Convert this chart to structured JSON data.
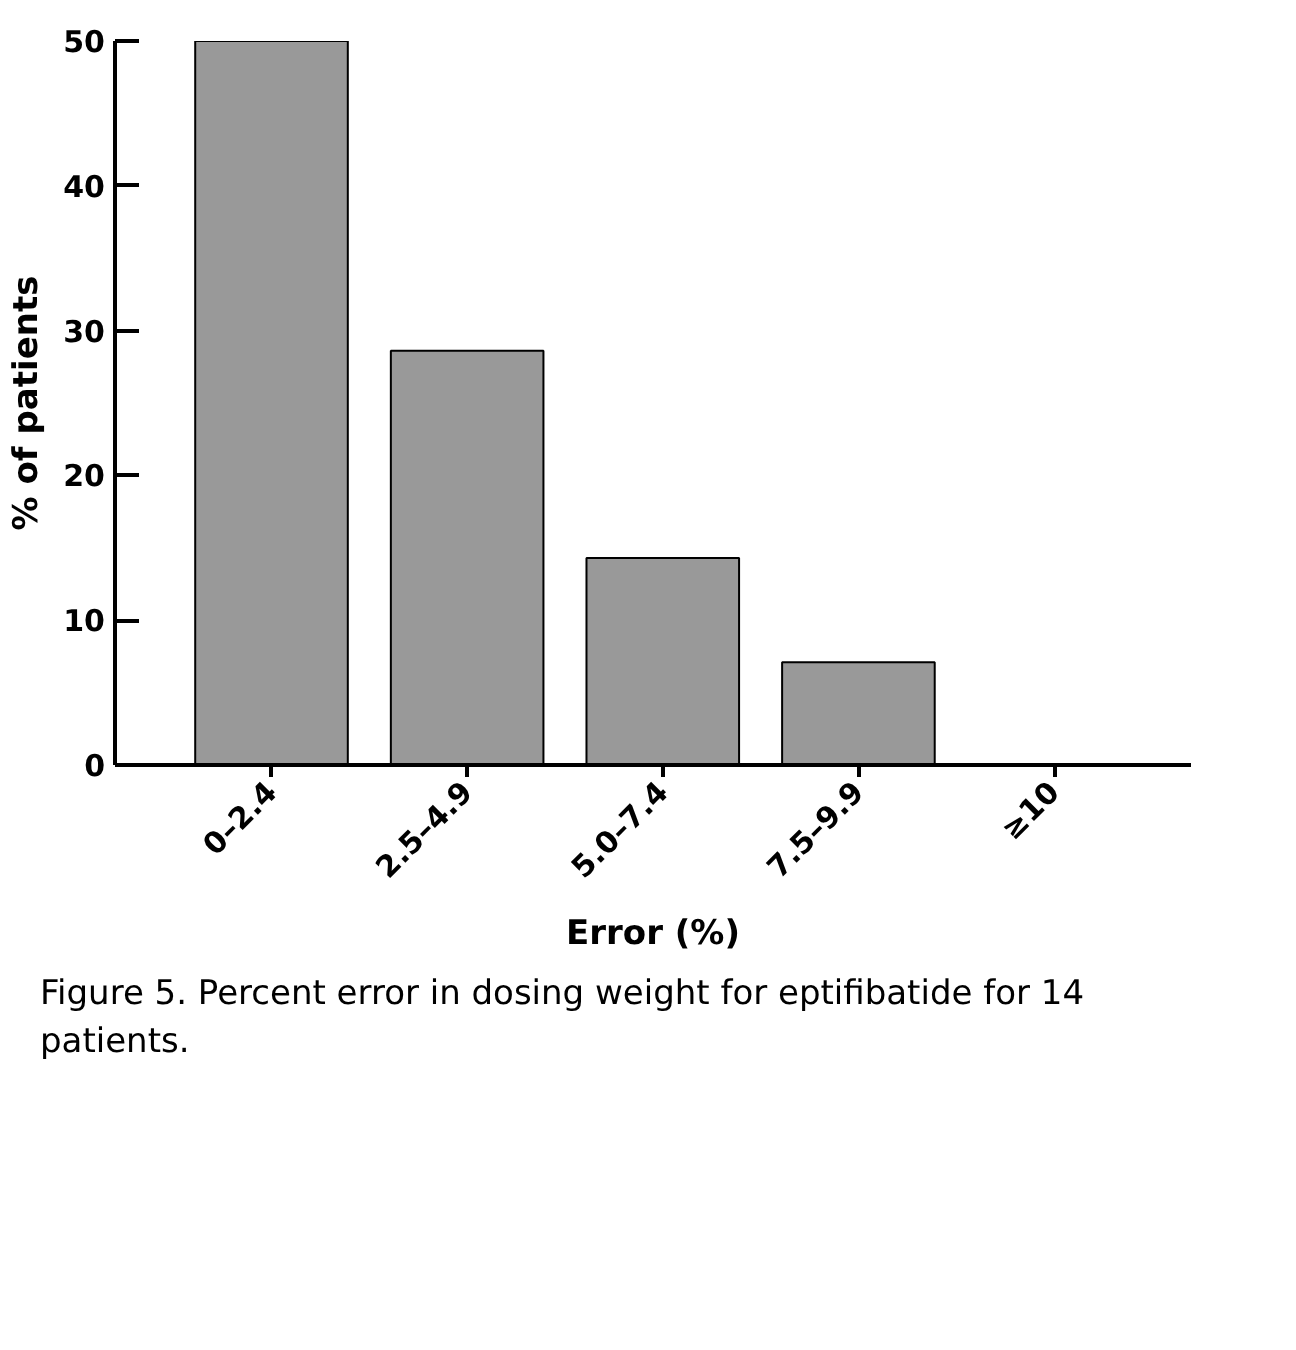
{
  "chart_data": {
    "type": "bar",
    "xlabel": "Error (%)",
    "ylabel": "% of patients",
    "categories": [
      "0–2.4",
      "2.5–4.9",
      "5.0–7.4",
      "7.5–9.9",
      "≥10"
    ],
    "values": [
      50,
      28.6,
      14.3,
      7.1,
      0
    ],
    "color": "#999999",
    "ylim": [
      0,
      50
    ],
    "yticks": [
      0,
      10,
      20,
      30,
      40,
      50
    ],
    "grid": false,
    "annotations": [
      "Figure 5. Percent error in dosing weight for eptifibatide for 14 patients."
    ]
  }
}
